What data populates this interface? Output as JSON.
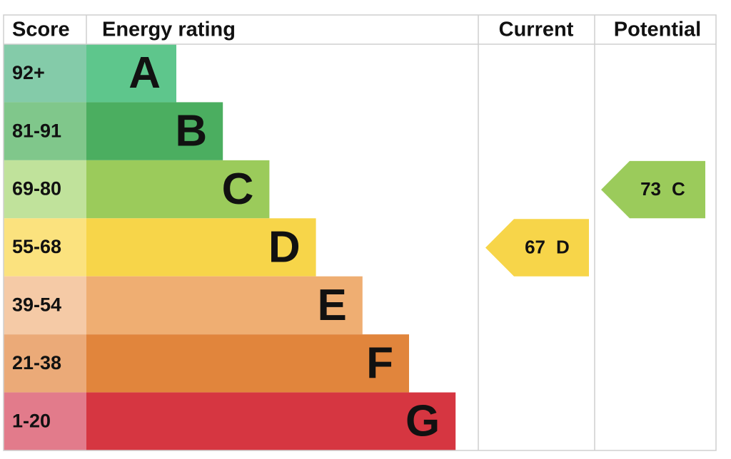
{
  "header": {
    "score": "Score",
    "energy_rating": "Energy rating",
    "current": "Current",
    "potential": "Potential"
  },
  "rows": [
    {
      "score": "92+",
      "band": "A",
      "color": "#5ec68c",
      "score_color": "#84cba9"
    },
    {
      "score": "81-91",
      "band": "B",
      "color": "#4bae60",
      "score_color": "#80c78b"
    },
    {
      "score": "69-80",
      "band": "C",
      "color": "#9bcb5b",
      "score_color": "#c0e29b"
    },
    {
      "score": "55-68",
      "band": "D",
      "color": "#f7d549",
      "score_color": "#fbe27e"
    },
    {
      "score": "39-54",
      "band": "E",
      "color": "#efae72",
      "score_color": "#f5caa6"
    },
    {
      "score": "21-38",
      "band": "F",
      "color": "#e1853c",
      "score_color": "#ebaa78"
    },
    {
      "score": "1-20",
      "band": "G",
      "color": "#d63641",
      "score_color": "#e27b8b"
    }
  ],
  "current": {
    "value": 67,
    "band": "D"
  },
  "potential": {
    "value": 73,
    "band": "C"
  }
}
